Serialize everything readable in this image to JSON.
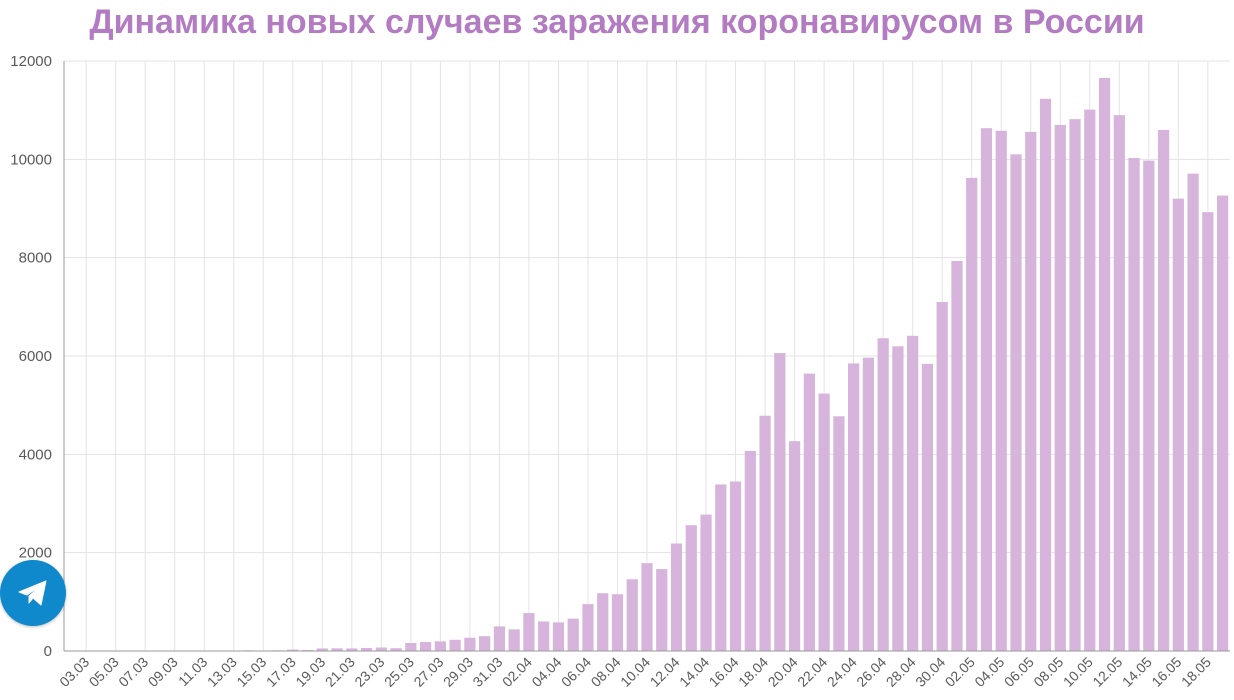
{
  "colors": {
    "title": "#b37cc2",
    "bar": "#d6b4dc",
    "grid": "#e3e3e3",
    "axis": "#9a9a9a",
    "telegram": "#0f88cc"
  },
  "telegram_icon": "telegram-paper-plane-icon",
  "chart_data": {
    "type": "bar",
    "title": "Динамика новых случаев заражения коронавирусом в России",
    "xlabel": "",
    "ylabel": "",
    "ylim": [
      0,
      12000
    ],
    "yticks": [
      0,
      2000,
      4000,
      6000,
      8000,
      10000,
      12000
    ],
    "grid": true,
    "legend": "none",
    "tick_labels": [
      "03.03",
      "05.03",
      "07.03",
      "09.03",
      "11.03",
      "13.03",
      "15.03",
      "17.03",
      "19.03",
      "21.03",
      "23.03",
      "25.03",
      "27.03",
      "29.03",
      "31.03",
      "02.04",
      "04.04",
      "06.04",
      "08.04",
      "10.04",
      "12.04",
      "14.04",
      "16.04",
      "18.04",
      "20.04",
      "22.04",
      "24.04",
      "26.04",
      "28.04",
      "30.04",
      "02.05",
      "04.05",
      "06.05",
      "08.05",
      "10.05",
      "12.05",
      "14.05",
      "16.05",
      "18.05"
    ],
    "categories": [
      "02.03",
      "03.03",
      "04.03",
      "05.03",
      "06.03",
      "07.03",
      "08.03",
      "09.03",
      "10.03",
      "11.03",
      "12.03",
      "13.03",
      "14.03",
      "15.03",
      "16.03",
      "17.03",
      "18.03",
      "19.03",
      "20.03",
      "21.03",
      "22.03",
      "23.03",
      "24.03",
      "25.03",
      "26.03",
      "27.03",
      "28.03",
      "29.03",
      "30.03",
      "31.03",
      "01.04",
      "02.04",
      "03.04",
      "04.04",
      "05.04",
      "06.04",
      "07.04",
      "08.04",
      "09.04",
      "10.04",
      "11.04",
      "12.04",
      "13.04",
      "14.04",
      "15.04",
      "16.04",
      "17.04",
      "18.04",
      "19.04",
      "20.04",
      "21.04",
      "22.04",
      "23.04",
      "24.04",
      "25.04",
      "26.04",
      "27.04",
      "28.04",
      "29.04",
      "30.04",
      "01.05",
      "02.05",
      "03.05",
      "04.05",
      "05.05",
      "06.05",
      "07.05",
      "08.05",
      "09.05",
      "10.05",
      "11.05",
      "12.05",
      "13.05",
      "14.05",
      "15.05",
      "16.05",
      "17.05",
      "18.05",
      "19.05"
    ],
    "values": [
      1,
      0,
      0,
      0,
      1,
      1,
      3,
      3,
      0,
      3,
      8,
      0,
      14,
      4,
      14,
      29,
      21,
      52,
      54,
      53,
      61,
      71,
      57,
      163,
      182,
      196,
      228,
      270,
      302,
      500,
      440,
      771,
      601,
      582,
      658,
      954,
      1175,
      1154,
      1459,
      1786,
      1667,
      2186,
      2558,
      2774,
      3388,
      3448,
      4070,
      4785,
      6060,
      4268,
      5642,
      5236,
      4774,
      5849,
      5966,
      6361,
      6198,
      6411,
      5841,
      7099,
      7933,
      9623,
      10633,
      10581,
      10102,
      10559,
      11231,
      10699,
      10817,
      11012,
      11656,
      10899,
      10028,
      9974,
      10598,
      9200,
      9709,
      8926,
      9263
    ]
  }
}
